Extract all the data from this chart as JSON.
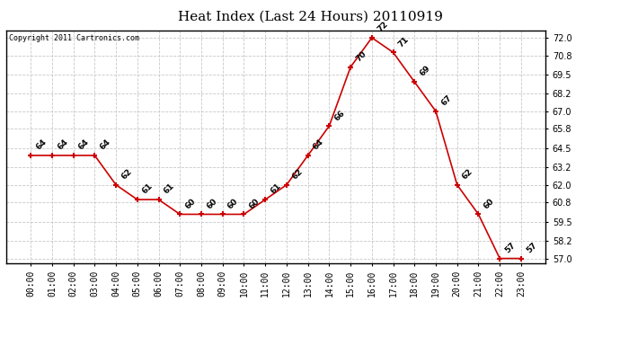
{
  "title": "Heat Index (Last 24 Hours) 20110919",
  "copyright_text": "Copyright 2011 Cartronics.com",
  "hours": [
    "00:00",
    "01:00",
    "02:00",
    "03:00",
    "04:00",
    "05:00",
    "06:00",
    "07:00",
    "08:00",
    "09:00",
    "10:00",
    "11:00",
    "12:00",
    "13:00",
    "14:00",
    "15:00",
    "16:00",
    "17:00",
    "18:00",
    "19:00",
    "20:00",
    "21:00",
    "22:00",
    "23:00"
  ],
  "values": [
    64,
    64,
    64,
    64,
    62,
    61,
    61,
    60,
    60,
    60,
    60,
    61,
    62,
    64,
    66,
    70,
    72,
    71,
    69,
    67,
    62,
    60,
    57,
    57
  ],
  "line_color": "#cc0000",
  "marker_color": "#cc0000",
  "bg_color": "#ffffff",
  "plot_bg_color": "#ffffff",
  "grid_color": "#c8c8c8",
  "title_fontsize": 11,
  "label_fontsize": 7,
  "annotation_fontsize": 6.5,
  "ylim_min": 56.7,
  "ylim_max": 72.5,
  "yticks": [
    57.0,
    58.2,
    59.5,
    60.8,
    62.0,
    63.2,
    64.5,
    65.8,
    67.0,
    68.2,
    69.5,
    70.8,
    72.0
  ]
}
